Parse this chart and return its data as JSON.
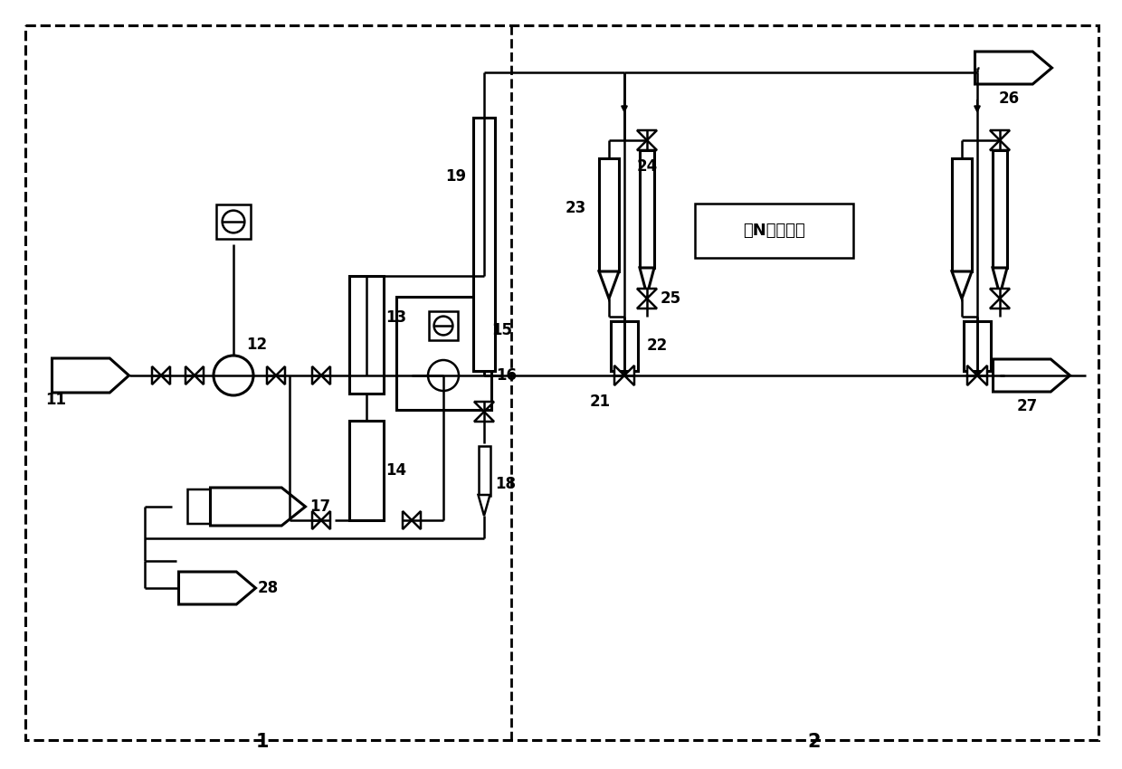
{
  "bg": "#ffffff",
  "lc": "#000000",
  "lw": 1.8,
  "lw2": 2.2,
  "fs": 12,
  "fw": "bold",
  "chinese_text": "共N组吸附柱"
}
